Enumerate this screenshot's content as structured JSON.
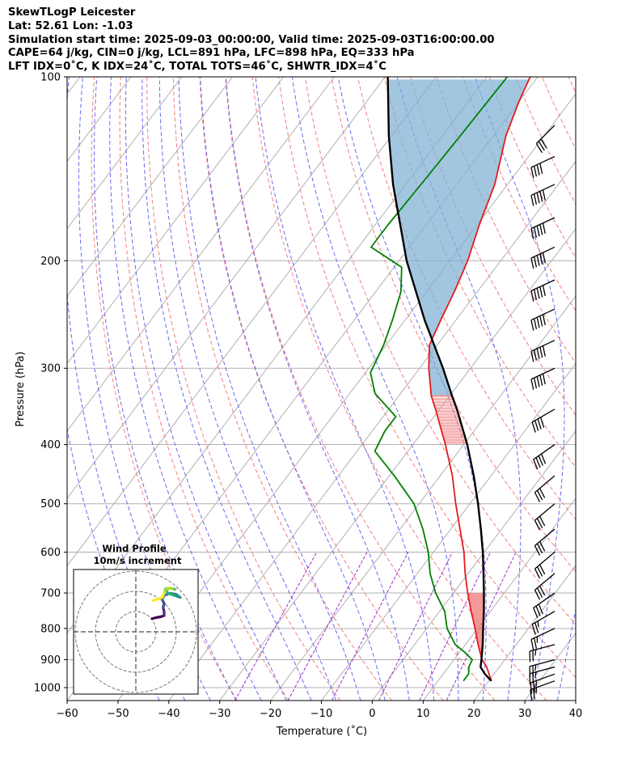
{
  "header": {
    "line1": "SkewTLogP Leicester",
    "line2": "Lat: 52.61   Lon: -1.03",
    "line3": "Simulation start time: 2025-09-03_00:00:00, Valid time: 2025-09-03T16:00:00.00",
    "line4": "CAPE=64 j/kg, CIN=0 j/kg, LCL=891 hPa, LFC=898 hPa, EQ=333 hPa",
    "line5": "LFT IDX=0˚C, K IDX=24˚C, TOTAL TOTS=46˚C, SHWTR_IDX=4˚C"
  },
  "colors": {
    "temperature": "#e41a1c",
    "dewpoint": "#008000",
    "parcel": "#000000",
    "cape_fill": "#7fb0d4",
    "cin_fill": "#f08080",
    "dry_adiabat": "#f08080",
    "moist_adiabat": "#6a6af0",
    "mixing_ratio": "#9b30c8",
    "isotherm": "#b0b0b0"
  },
  "chart_data": {
    "type": "skewt",
    "xlabel": "Temperature (˚C)",
    "ylabel": "Pressure (hPa)",
    "xlim": [
      -60,
      40
    ],
    "ylim": [
      1050,
      100
    ],
    "xticks": [
      "−60",
      "−50",
      "−40",
      "−30",
      "−20",
      "−10",
      "0",
      "10",
      "20",
      "30",
      "40"
    ],
    "yticks": [
      "100",
      "200",
      "300",
      "400",
      "500",
      "600",
      "700",
      "800",
      "900",
      "1000"
    ],
    "temperature": [
      {
        "p": 975,
        "t": 20.5
      },
      {
        "p": 925,
        "t": 17.5
      },
      {
        "p": 900,
        "t": 15.5
      },
      {
        "p": 850,
        "t": 12.5
      },
      {
        "p": 800,
        "t": 9.5
      },
      {
        "p": 750,
        "t": 6.2
      },
      {
        "p": 700,
        "t": 2.8
      },
      {
        "p": 650,
        "t": -0.6
      },
      {
        "p": 600,
        "t": -4.0
      },
      {
        "p": 550,
        "t": -8.2
      },
      {
        "p": 500,
        "t": -12.8
      },
      {
        "p": 450,
        "t": -17.6
      },
      {
        "p": 400,
        "t": -23.6
      },
      {
        "p": 350,
        "t": -30.8
      },
      {
        "p": 333,
        "t": -33.6
      },
      {
        "p": 300,
        "t": -38.2
      },
      {
        "p": 275,
        "t": -41.5
      },
      {
        "p": 250,
        "t": -43.0
      },
      {
        "p": 225,
        "t": -44.5
      },
      {
        "p": 200,
        "t": -46.5
      },
      {
        "p": 175,
        "t": -49.5
      },
      {
        "p": 150,
        "t": -52.5
      },
      {
        "p": 125,
        "t": -57.5
      },
      {
        "p": 110,
        "t": -60.0
      },
      {
        "p": 100,
        "t": -61.5
      }
    ],
    "dewpoint": [
      {
        "p": 975,
        "t": 15.0
      },
      {
        "p": 950,
        "t": 15.0
      },
      {
        "p": 925,
        "t": 14.0
      },
      {
        "p": 900,
        "t": 13.6
      },
      {
        "p": 875,
        "t": 11.0
      },
      {
        "p": 850,
        "t": 8.0
      },
      {
        "p": 800,
        "t": 4.0
      },
      {
        "p": 750,
        "t": 1.0
      },
      {
        "p": 700,
        "t": -3.5
      },
      {
        "p": 650,
        "t": -7.5
      },
      {
        "p": 600,
        "t": -11.0
      },
      {
        "p": 550,
        "t": -15.5
      },
      {
        "p": 500,
        "t": -21.0
      },
      {
        "p": 450,
        "t": -29.0
      },
      {
        "p": 410,
        "t": -36.5
      },
      {
        "p": 380,
        "t": -37.5
      },
      {
        "p": 360,
        "t": -37.5
      },
      {
        "p": 330,
        "t": -45.0
      },
      {
        "p": 305,
        "t": -49.0
      },
      {
        "p": 275,
        "t": -50.5
      },
      {
        "p": 250,
        "t": -52.5
      },
      {
        "p": 225,
        "t": -55.0
      },
      {
        "p": 205,
        "t": -58.5
      },
      {
        "p": 190,
        "t": -67.5
      },
      {
        "p": 175,
        "t": -67.5
      },
      {
        "p": 150,
        "t": -67.0
      },
      {
        "p": 125,
        "t": -66.5
      },
      {
        "p": 100,
        "t": -66.0
      }
    ],
    "parcel": [
      {
        "p": 975,
        "t": 20.5
      },
      {
        "p": 950,
        "t": 18.2
      },
      {
        "p": 925,
        "t": 16.3
      },
      {
        "p": 900,
        "t": 15.4
      },
      {
        "p": 850,
        "t": 13.4
      },
      {
        "p": 800,
        "t": 11.1
      },
      {
        "p": 750,
        "t": 8.7
      },
      {
        "p": 700,
        "t": 6.0
      },
      {
        "p": 650,
        "t": 3.0
      },
      {
        "p": 600,
        "t": -0.3
      },
      {
        "p": 550,
        "t": -4.1
      },
      {
        "p": 500,
        "t": -8.4
      },
      {
        "p": 450,
        "t": -13.4
      },
      {
        "p": 400,
        "t": -19.3
      },
      {
        "p": 350,
        "t": -26.6
      },
      {
        "p": 333,
        "t": -29.5
      },
      {
        "p": 300,
        "t": -35.4
      },
      {
        "p": 250,
        "t": -46.2
      },
      {
        "p": 200,
        "t": -58.5
      },
      {
        "p": 150,
        "t": -72.5
      },
      {
        "p": 125,
        "t": -80.5
      },
      {
        "p": 100,
        "t": -89.5
      }
    ],
    "annotations": {
      "lcl_hpa": 891,
      "lfc_hpa": 898,
      "eq_hpa": 333
    },
    "wind_barbs": [
      {
        "p": 975,
        "dir": 250,
        "spd": 12
      },
      {
        "p": 950,
        "dir": 250,
        "spd": 12
      },
      {
        "p": 925,
        "dir": 255,
        "spd": 12
      },
      {
        "p": 900,
        "dir": 255,
        "spd": 12
      },
      {
        "p": 850,
        "dir": 255,
        "spd": 12
      },
      {
        "p": 800,
        "dir": 245,
        "spd": 12
      },
      {
        "p": 750,
        "dir": 240,
        "spd": 12
      },
      {
        "p": 700,
        "dir": 235,
        "spd": 15
      },
      {
        "p": 650,
        "dir": 230,
        "spd": 15
      },
      {
        "p": 600,
        "dir": 230,
        "spd": 15
      },
      {
        "p": 550,
        "dir": 230,
        "spd": 15
      },
      {
        "p": 500,
        "dir": 230,
        "spd": 15
      },
      {
        "p": 450,
        "dir": 230,
        "spd": 15
      },
      {
        "p": 400,
        "dir": 235,
        "spd": 20
      },
      {
        "p": 350,
        "dir": 240,
        "spd": 20
      },
      {
        "p": 300,
        "dir": 245,
        "spd": 25
      },
      {
        "p": 270,
        "dir": 245,
        "spd": 25
      },
      {
        "p": 240,
        "dir": 245,
        "spd": 25
      },
      {
        "p": 215,
        "dir": 245,
        "spd": 25
      },
      {
        "p": 190,
        "dir": 245,
        "spd": 25
      },
      {
        "p": 170,
        "dir": 245,
        "spd": 25
      },
      {
        "p": 150,
        "dir": 245,
        "spd": 25
      },
      {
        "p": 135,
        "dir": 245,
        "spd": 20
      },
      {
        "p": 120,
        "dir": 225,
        "spd": 15
      }
    ],
    "hodograph": {
      "title": "Wind Profile",
      "subtitle": "10m/s increment",
      "rings_ms": [
        10,
        20,
        30
      ],
      "points": [
        {
          "u": 8.0,
          "v": 6.5
        },
        {
          "u": 10.0,
          "v": 7.0
        },
        {
          "u": 12.5,
          "v": 7.5
        },
        {
          "u": 14.0,
          "v": 8.0
        },
        {
          "u": 14.0,
          "v": 10.0
        },
        {
          "u": 13.5,
          "v": 12.0
        },
        {
          "u": 14.0,
          "v": 14.0
        },
        {
          "u": 13.0,
          "v": 16.0
        },
        {
          "u": 14.0,
          "v": 18.0
        },
        {
          "u": 17.0,
          "v": 19.0
        },
        {
          "u": 20.0,
          "v": 18.5
        },
        {
          "u": 22.0,
          "v": 17.0
        },
        {
          "u": 19.0,
          "v": 18.0
        },
        {
          "u": 16.0,
          "v": 19.0
        },
        {
          "u": 14.5,
          "v": 21.0
        },
        {
          "u": 17.0,
          "v": 21.5
        },
        {
          "u": 19.5,
          "v": 21.0
        },
        {
          "u": 18.0,
          "v": 21.5
        },
        {
          "u": 15.0,
          "v": 21.5
        },
        {
          "u": 14.0,
          "v": 19.0
        },
        {
          "u": 13.0,
          "v": 17.0
        },
        {
          "u": 10.5,
          "v": 16.0
        },
        {
          "u": 8.5,
          "v": 15.5
        }
      ]
    }
  }
}
